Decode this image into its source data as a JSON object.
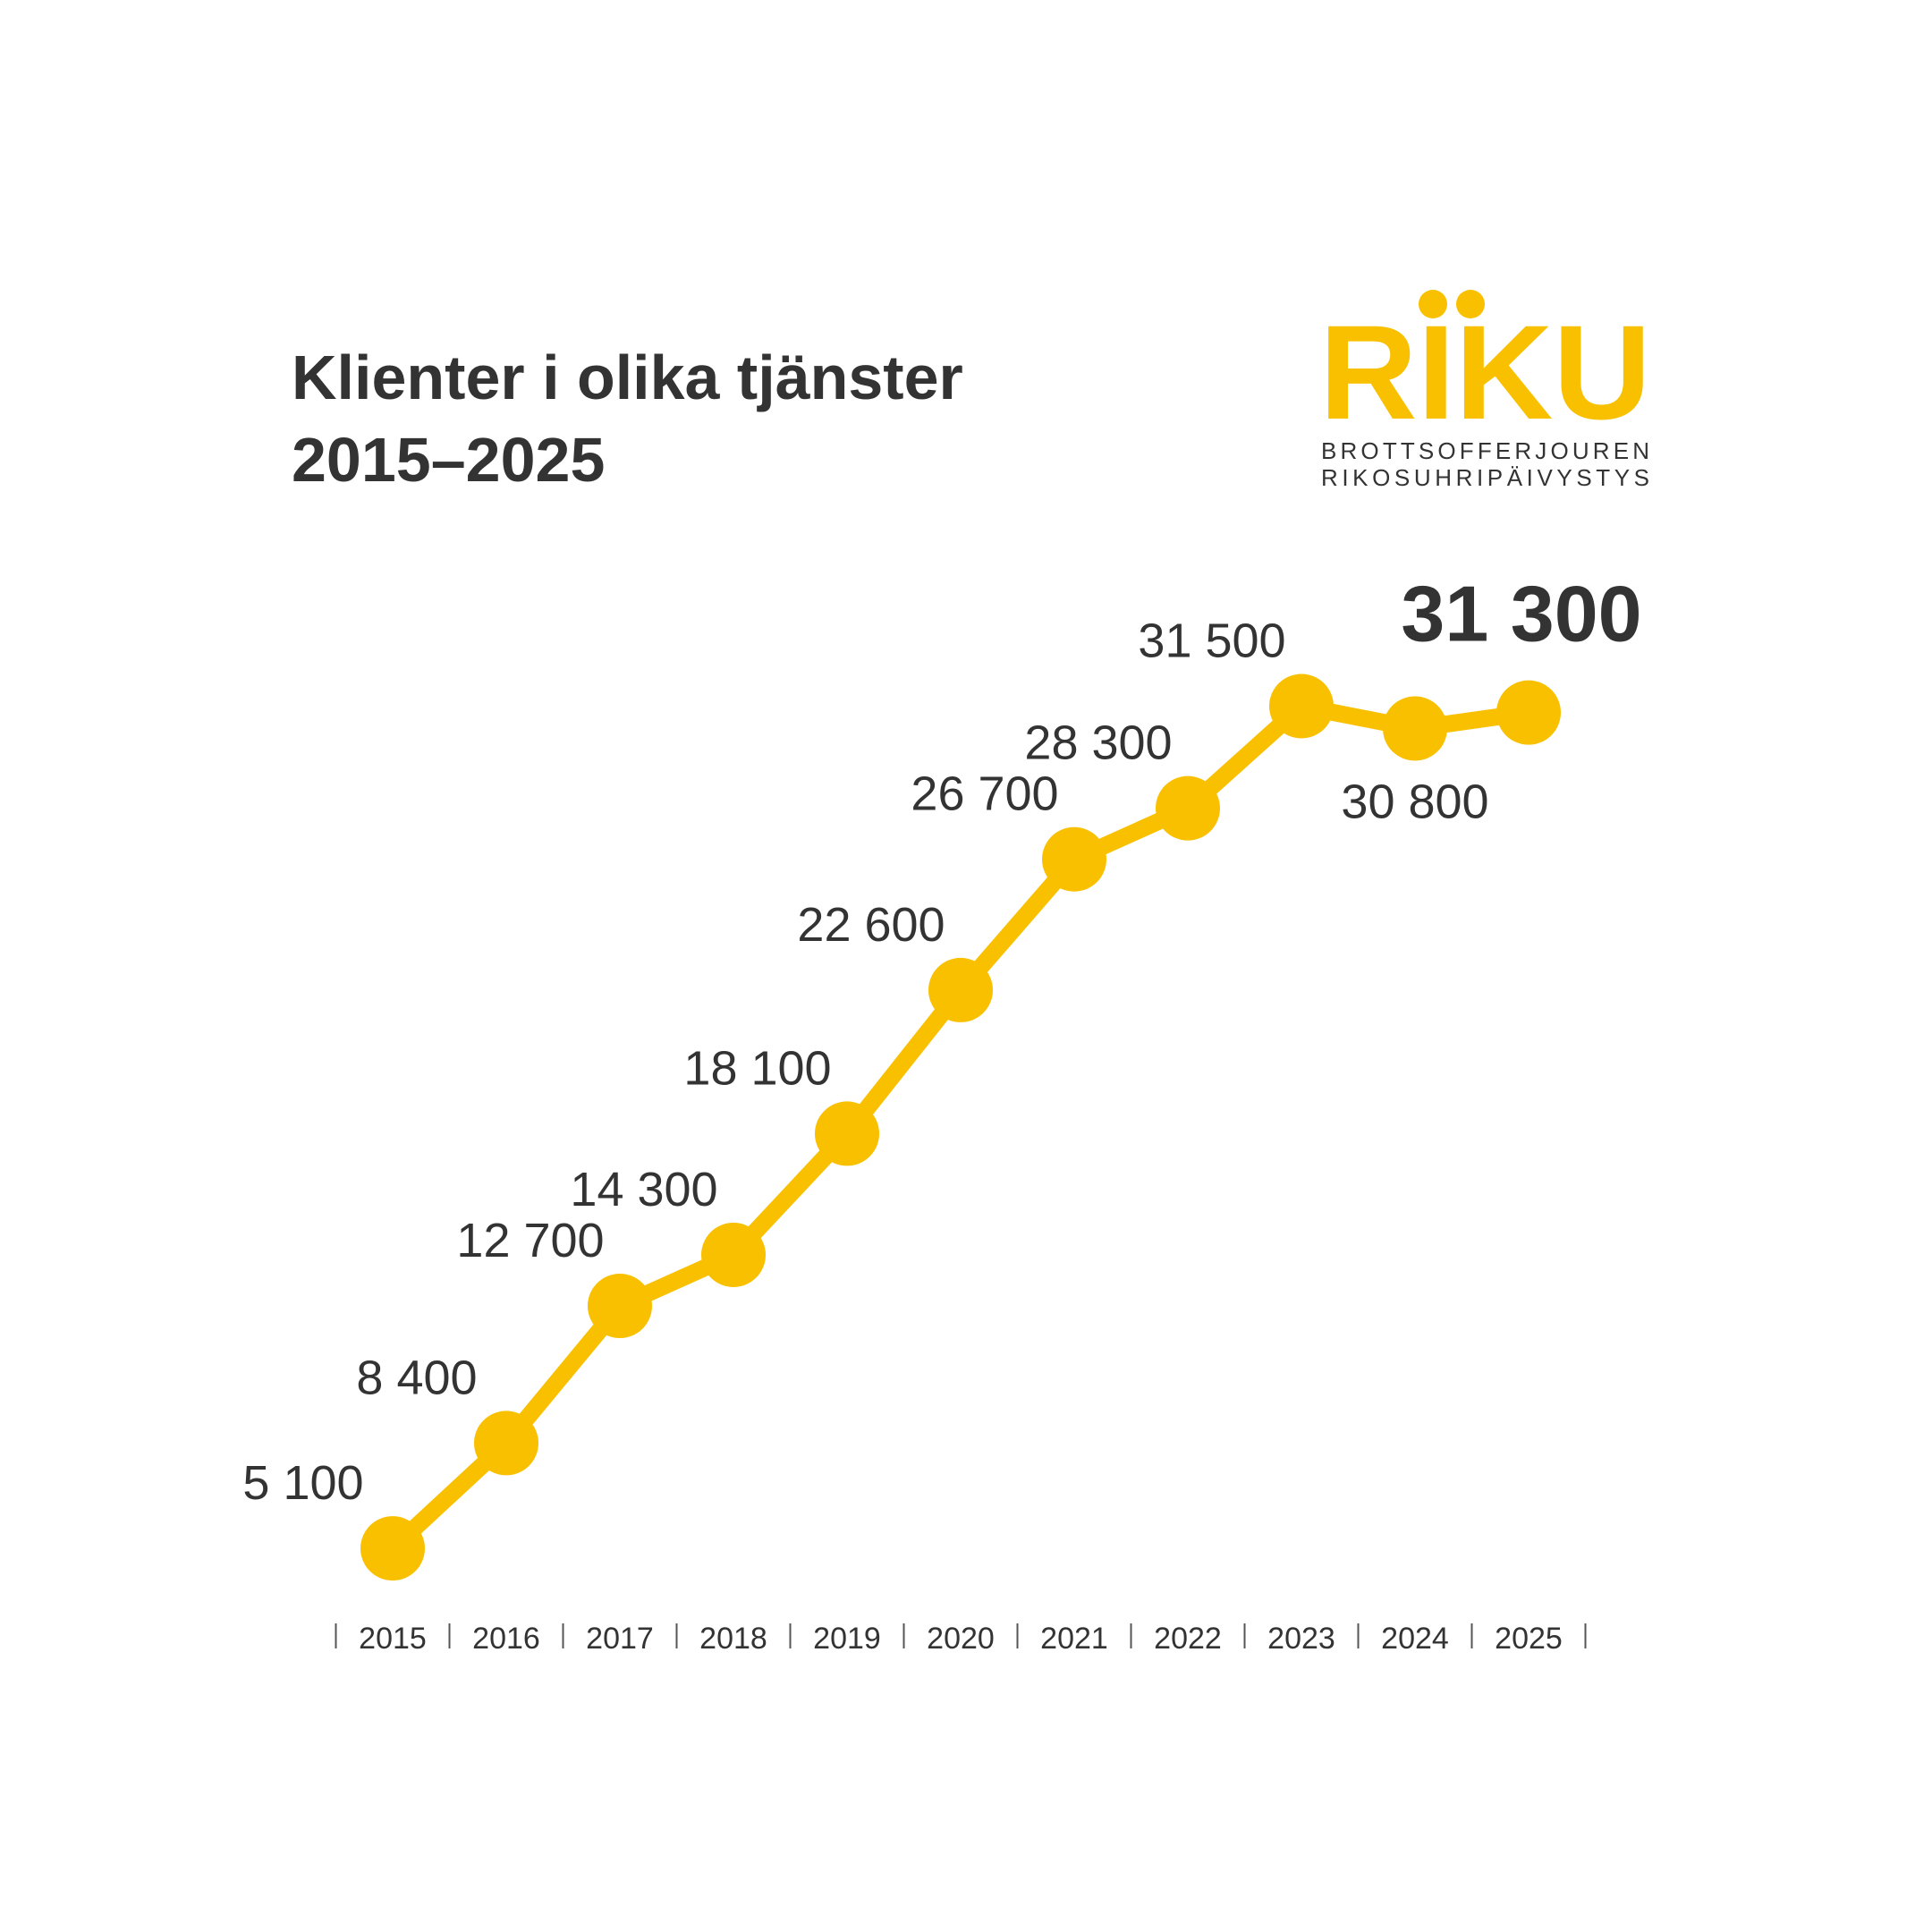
{
  "chart_data": {
    "type": "line",
    "title": [
      "Klienter i olika tjänster",
      "2015–2025"
    ],
    "logo": {
      "name": "RIKU",
      "lines": [
        "BROTTSOFFERJOUREN",
        "RIKOSUHRIPÄIVYSTYS"
      ]
    },
    "categories": [
      "2015",
      "2016",
      "2017",
      "2018",
      "2019",
      "2020",
      "2021",
      "2022",
      "2023",
      "2024",
      "2025"
    ],
    "values": [
      5100,
      8400,
      12700,
      14300,
      18100,
      22600,
      26700,
      28300,
      31500,
      30800,
      31300
    ],
    "value_labels": [
      "5 100",
      "8 400",
      "12 700",
      "14 300",
      "18 100",
      "22 600",
      "26 700",
      "28 300",
      "31 500",
      "30 800",
      "31 300"
    ],
    "color": "#f9c000",
    "ylim": [
      0,
      33000
    ]
  }
}
